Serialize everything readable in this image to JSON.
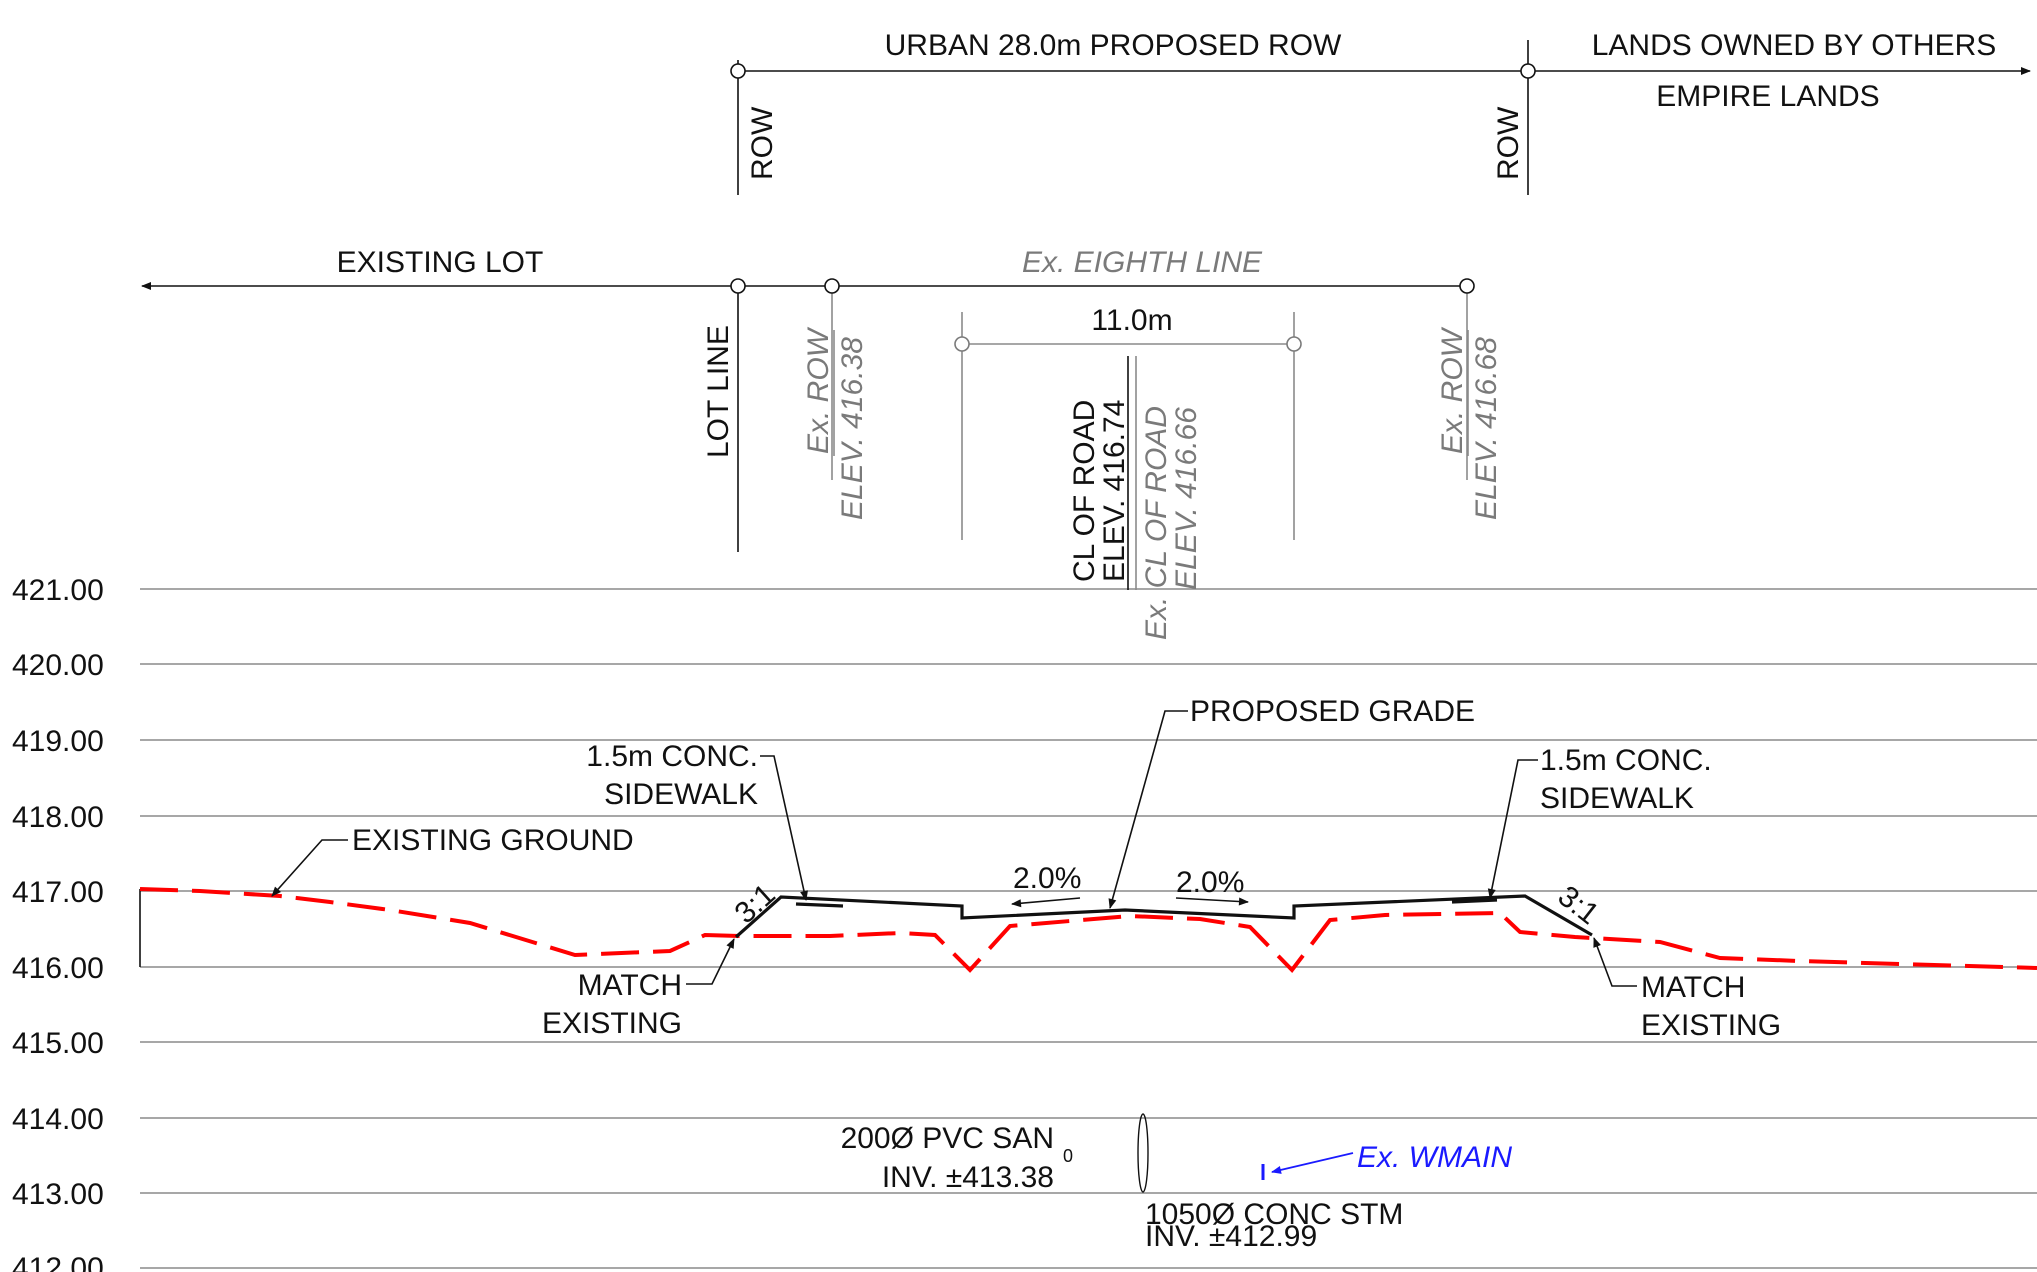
{
  "axis": {
    "elevations": [
      "421.00",
      "420.00",
      "419.00",
      "418.00",
      "417.00",
      "416.00",
      "415.00",
      "414.00",
      "413.00",
      "412.00"
    ]
  },
  "top_dimension": {
    "label": "URBAN 28.0m PROPOSED ROW",
    "right_label_1": "LANDS OWNED BY OTHERS",
    "right_label_2": "EMPIRE LANDS",
    "left_marker": "ROW",
    "right_marker": "ROW"
  },
  "existing_dimension": {
    "left_label": "EXISTING LOT",
    "road_label": "Ex. EIGHTH LINE",
    "lot_line": "LOT LINE",
    "ex_row_left_1": "Ex. ROW",
    "ex_row_left_2": "ELEV. 416.38",
    "ex_row_right_1": "Ex. ROW",
    "ex_row_right_2": "ELEV. 416.68"
  },
  "road_dimension": {
    "width_label": "11.0m",
    "cl_1": "CL OF ROAD",
    "cl_2": "ELEV. 416.74",
    "ex_cl_1": "Ex. CL OF ROAD",
    "ex_cl_2": "ELEV. 416.66"
  },
  "annotations": {
    "proposed_grade": "PROPOSED GRADE",
    "existing_ground": "EXISTING GROUND",
    "sidewalk_left_1": "1.5m CONC.",
    "sidewalk_left_2": "SIDEWALK",
    "sidewalk_right_1": "1.5m CONC.",
    "sidewalk_right_2": "SIDEWALK",
    "slope_left": "2.0%",
    "slope_right": "2.0%",
    "side_slope_left": "3:1",
    "side_slope_right": "3:1",
    "match_left_1": "MATCH",
    "match_left_2": "EXISTING",
    "match_right_1": "MATCH",
    "match_right_2": "EXISTING"
  },
  "utilities": {
    "san_1": "200Ø PVC SAN",
    "san_2": "INV. ±413.38",
    "san_mark": "0",
    "stm_1": "1050Ø CONC STM",
    "stm_2": "INV. ±412.99",
    "wmain": "Ex. WMAIN"
  },
  "colors": {
    "proposed_line": "#111111",
    "existing_ground": "#ff0000",
    "existing_info": "#7a7a7a",
    "watermain": "#1a1aff"
  }
}
